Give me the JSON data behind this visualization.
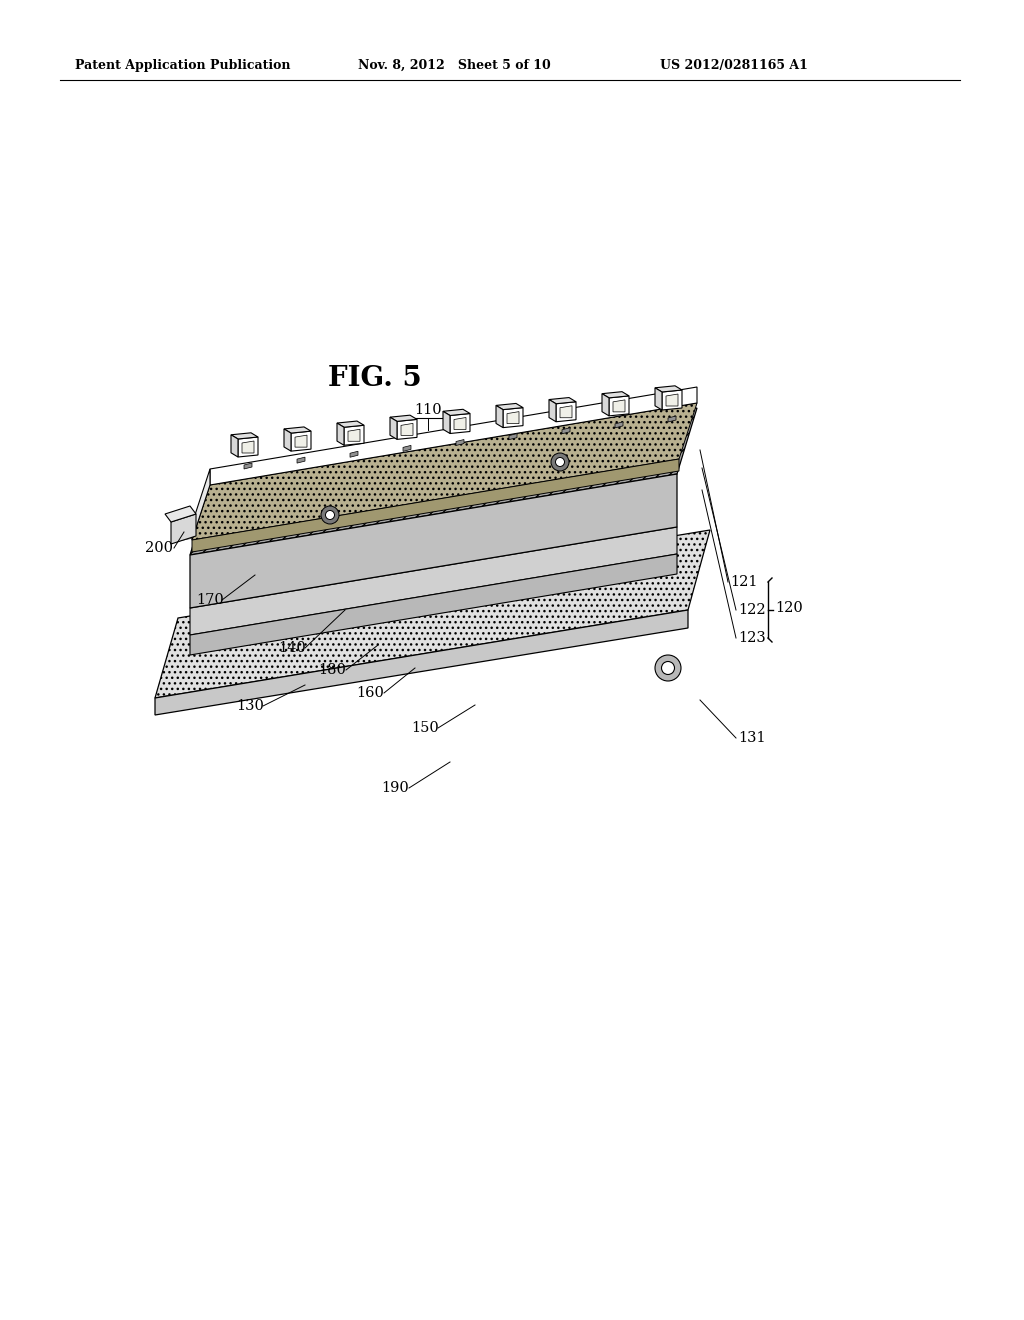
{
  "title": "FIG. 5",
  "header_left": "Patent Application Publication",
  "header_center": "Nov. 8, 2012   Sheet 5 of 10",
  "header_right": "US 2012/0281165 A1",
  "bg_color": "#ffffff",
  "line_color": "#000000"
}
